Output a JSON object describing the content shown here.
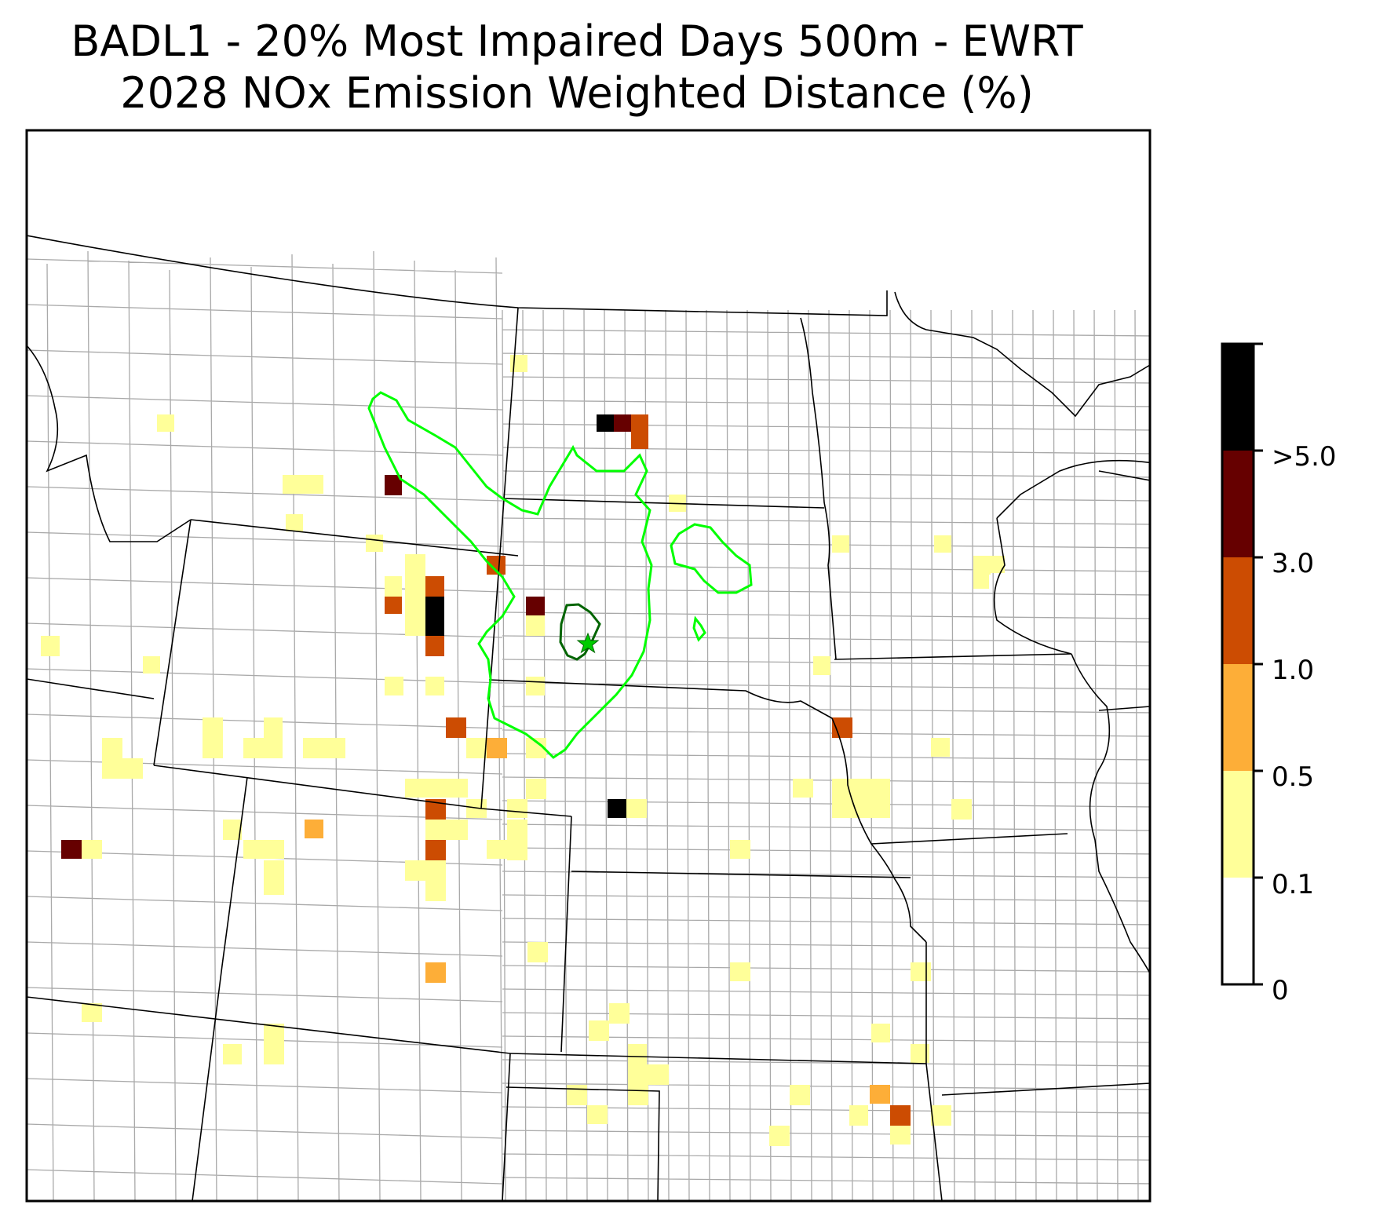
{
  "title": {
    "line1": "BADL1 - 20% Most Impaired Days 500m - EWRT",
    "line2": "2028 NOx Emission Weighted Distance (%)"
  },
  "legend": {
    "bins": [
      {
        "label": "0",
        "color": "#ffffff"
      },
      {
        "label": "0.1",
        "color": "#ffff99"
      },
      {
        "label": "0.5",
        "color": "#fdae38"
      },
      {
        "label": "1.0",
        "color": "#cc4c02"
      },
      {
        "label": "3.0",
        "color": "#660000"
      },
      {
        "label": ">5.0",
        "color": "#000000"
      }
    ]
  },
  "colors": {
    "outer_contour": "#00ff00",
    "inner_contour": "#006400",
    "site_marker": "#00cc00",
    "county_lines": "#a9a9a9",
    "state_lines": "#000000"
  },
  "site_marker": {
    "name": "BADL1",
    "icon": "star-icon"
  }
}
